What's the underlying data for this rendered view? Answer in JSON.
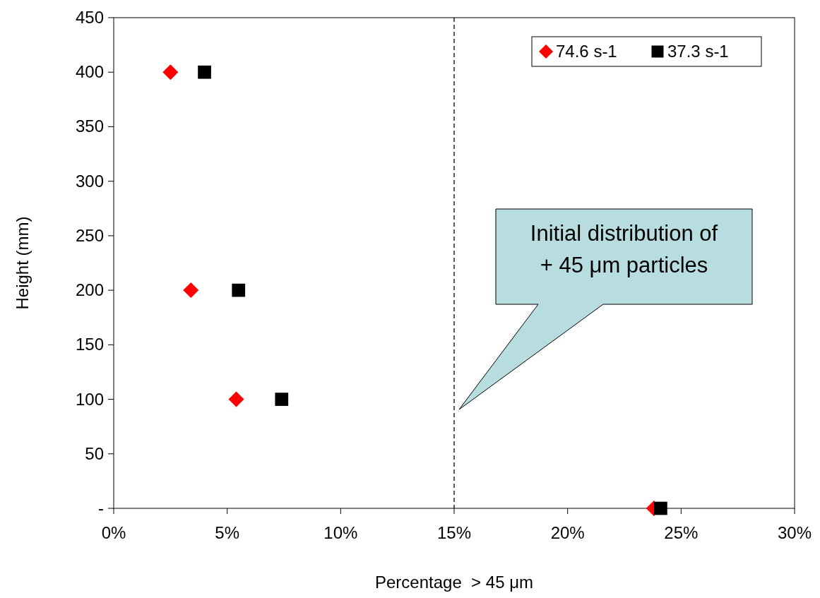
{
  "chart_data": {
    "type": "scatter",
    "xlabel": "Percentage  > 45 μm",
    "ylabel": "Height (mm)",
    "xlim": [
      0,
      30
    ],
    "xticks": [
      {
        "value": 0,
        "label": "0%"
      },
      {
        "value": 5,
        "label": "5%"
      },
      {
        "value": 10,
        "label": "10%"
      },
      {
        "value": 15,
        "label": "15%"
      },
      {
        "value": 20,
        "label": "20%"
      },
      {
        "value": 25,
        "label": "25%"
      },
      {
        "value": 30,
        "label": "30%"
      }
    ],
    "ylim": [
      0,
      450
    ],
    "yticks": [
      {
        "value": 0,
        "label": "-"
      },
      50,
      100,
      150,
      200,
      250,
      300,
      350,
      400,
      450
    ],
    "series": [
      {
        "name": "74.6 s-1",
        "color": "#ff0000",
        "marker": "diamond",
        "x": [
          2.5,
          3.4,
          5.4,
          23.8
        ],
        "values": [
          400,
          200,
          100,
          0
        ]
      },
      {
        "name": "37.3 s-1",
        "color": "#000000",
        "marker": "square",
        "x": [
          4.0,
          5.5,
          7.4,
          24.1
        ],
        "values": [
          400,
          200,
          100,
          0
        ]
      }
    ],
    "ref_lines": [
      {
        "axis": "x",
        "value": 15,
        "color": "#000000",
        "line_style": "dashed"
      }
    ],
    "annotations": [
      "Initial distribution of\n+ 45 μm particles"
    ],
    "legend": "top right",
    "grid": false
  }
}
